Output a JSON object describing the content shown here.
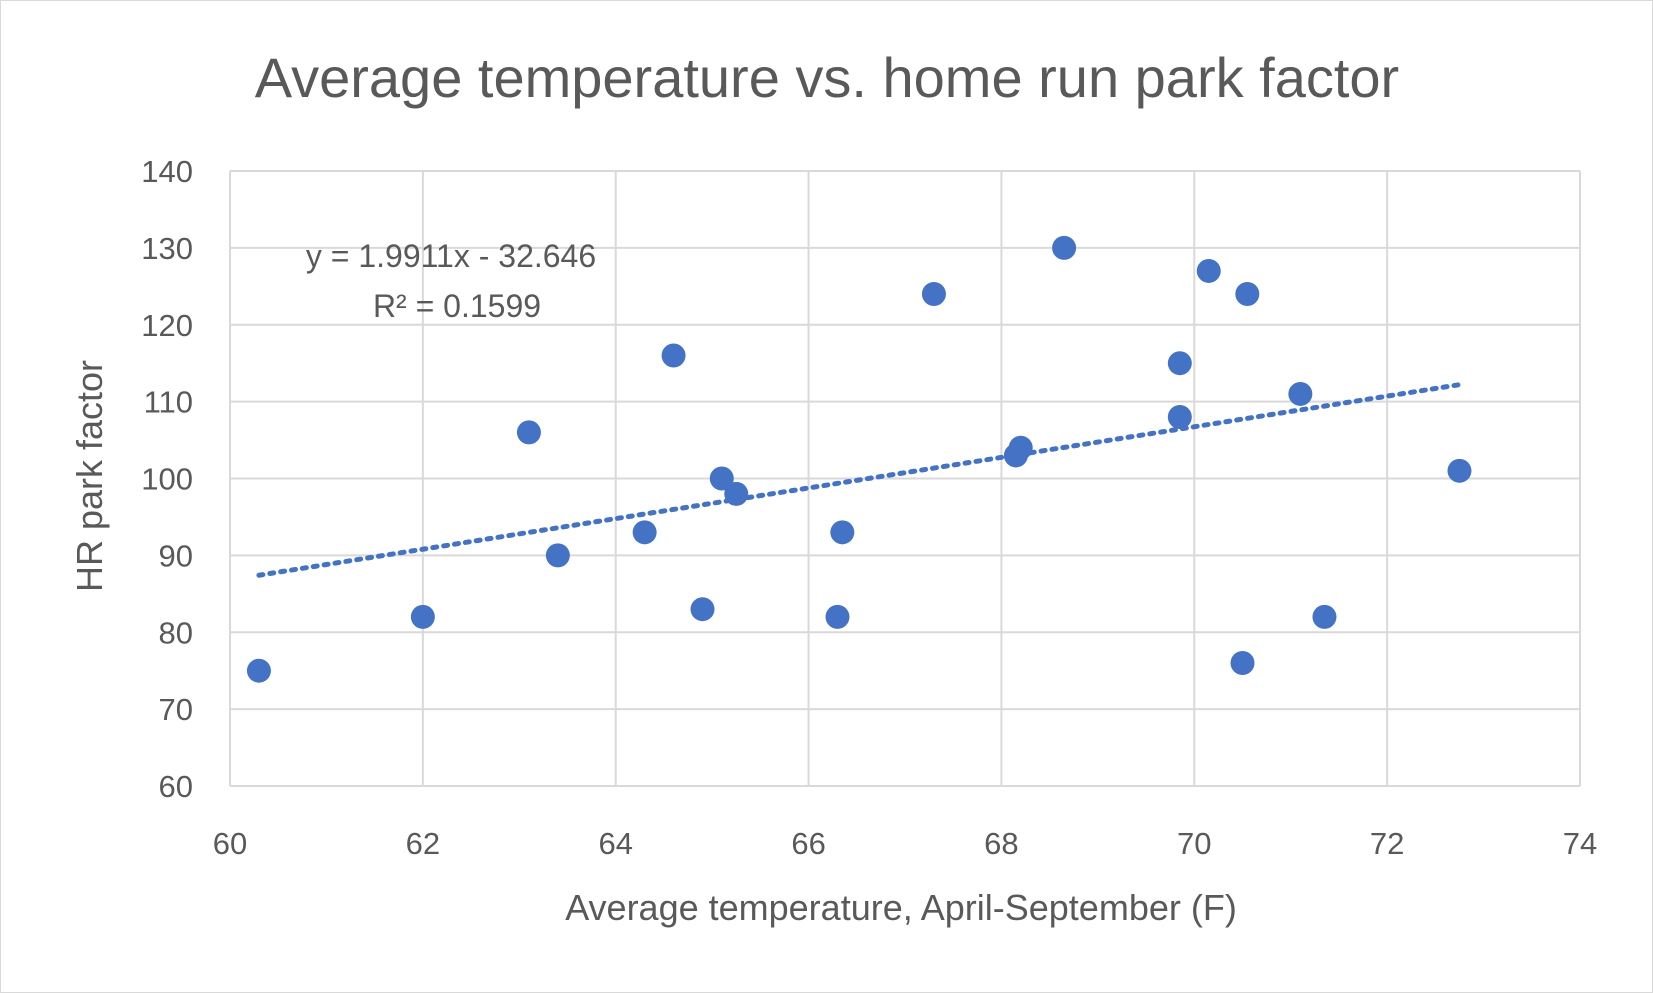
{
  "chart_data": {
    "type": "scatter",
    "title": "Average temperature vs. home run park factor",
    "xlabel": "Average temperature, April-September (F)",
    "ylabel": "HR park factor",
    "xlim": [
      60,
      74
    ],
    "ylim": [
      60,
      140
    ],
    "x_ticks": [
      60,
      62,
      64,
      66,
      68,
      70,
      72,
      74
    ],
    "y_ticks": [
      60,
      70,
      80,
      90,
      100,
      110,
      120,
      130,
      140
    ],
    "x_tick_labels": [
      "60",
      "62",
      "64",
      "66",
      "68",
      "70",
      "72",
      "74"
    ],
    "y_tick_labels": [
      "60",
      "70",
      "80",
      "90",
      "100",
      "110",
      "120",
      "130",
      "140"
    ],
    "grid": true,
    "legend": "none",
    "marker_color": "#4472c4",
    "points": [
      {
        "x": 60.3,
        "y": 75
      },
      {
        "x": 62.0,
        "y": 82
      },
      {
        "x": 63.1,
        "y": 106
      },
      {
        "x": 63.4,
        "y": 90
      },
      {
        "x": 64.3,
        "y": 93
      },
      {
        "x": 64.6,
        "y": 116
      },
      {
        "x": 64.9,
        "y": 83
      },
      {
        "x": 65.1,
        "y": 100
      },
      {
        "x": 65.25,
        "y": 98
      },
      {
        "x": 66.3,
        "y": 82
      },
      {
        "x": 66.35,
        "y": 93
      },
      {
        "x": 67.3,
        "y": 124
      },
      {
        "x": 68.15,
        "y": 103
      },
      {
        "x": 68.2,
        "y": 104
      },
      {
        "x": 68.65,
        "y": 130
      },
      {
        "x": 69.85,
        "y": 115
      },
      {
        "x": 69.85,
        "y": 108
      },
      {
        "x": 70.15,
        "y": 127
      },
      {
        "x": 70.5,
        "y": 76
      },
      {
        "x": 70.55,
        "y": 124
      },
      {
        "x": 71.1,
        "y": 111
      },
      {
        "x": 71.35,
        "y": 82
      },
      {
        "x": 72.75,
        "y": 101
      }
    ],
    "trendline": {
      "type": "linear",
      "slope": 1.9911,
      "intercept": -32.646,
      "x_range": [
        60.3,
        72.75
      ],
      "style": "dotted",
      "equation_label": "y = 1.9911x - 32.646",
      "r2_label": "R² = 0.1599"
    }
  }
}
